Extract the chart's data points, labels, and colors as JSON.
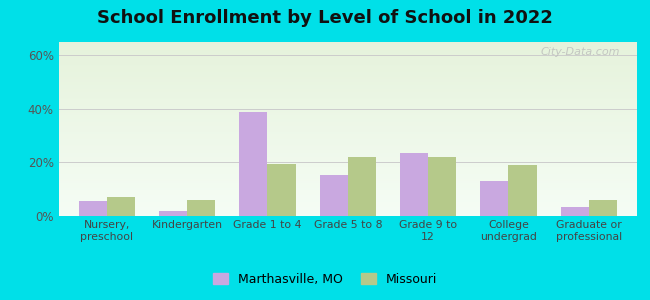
{
  "title": "School Enrollment by Level of School in 2022",
  "categories": [
    "Nursery,\npreschool",
    "Kindergarten",
    "Grade 1 to 4",
    "Grade 5 to 8",
    "Grade 9 to\n12",
    "College\nundergrad",
    "Graduate or\nprofessional"
  ],
  "marthasville": [
    5.5,
    2.0,
    39.0,
    15.5,
    23.5,
    13.0,
    3.5
  ],
  "missouri": [
    7.0,
    6.0,
    19.5,
    22.0,
    22.0,
    19.0,
    6.0
  ],
  "marthasville_color": "#c9a8e0",
  "missouri_color": "#b5c98a",
  "background_outer": "#00e0e8",
  "ylim": [
    0,
    65
  ],
  "yticks": [
    0,
    20,
    40,
    60
  ],
  "ytick_labels": [
    "0%",
    "20%",
    "40%",
    "60%"
  ],
  "legend_label_1": "Marthasville, MO",
  "legend_label_2": "Missouri",
  "title_fontsize": 13,
  "watermark": "City-Data.com"
}
